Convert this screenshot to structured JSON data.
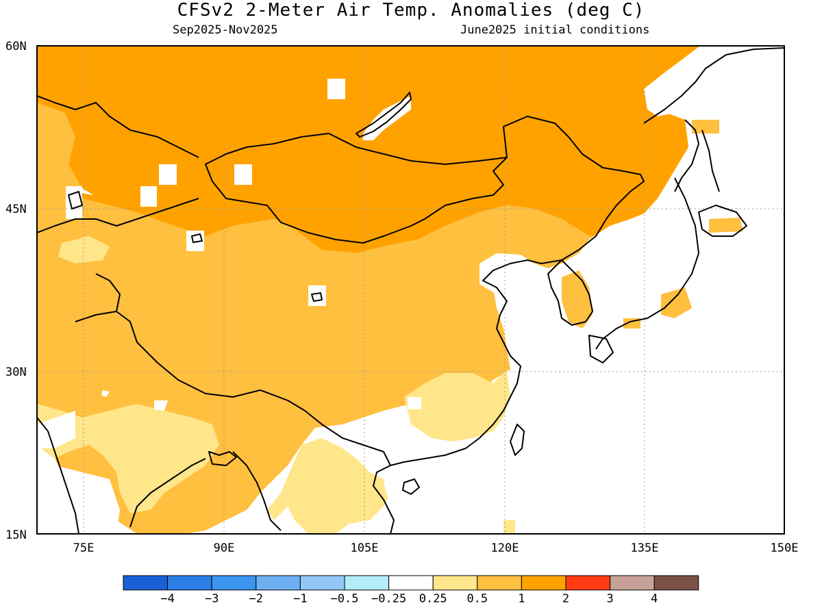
{
  "title": "CFSv2 2-Meter Air Temp. Anomalies (deg C)",
  "subtitle_left": "Sep2025-Nov2025",
  "subtitle_right": "June2025 initial conditions",
  "map": {
    "lon_range": [
      70,
      150
    ],
    "lat_range": [
      15,
      60
    ],
    "lat_labels": [
      "60N",
      "45N",
      "30N",
      "15N"
    ],
    "lon_labels": [
      "75E",
      "90E",
      "105E",
      "120E",
      "135E",
      "150E"
    ],
    "gridlines": "dotted"
  },
  "colorbar": {
    "colors": [
      "#1a5fd6",
      "#2c7fe6",
      "#3a96ee",
      "#6cb0f2",
      "#93c8f6",
      "#b4ecf8",
      "#ffffff",
      "#ffe68a",
      "#ffbf3f",
      "#ffa200",
      "#ff3c14",
      "#c8a298",
      "#7a5246"
    ],
    "labels": [
      "-4",
      "-3",
      "-2",
      "-1",
      "-0.5",
      "-0.25",
      "0.25",
      "0.5",
      "1",
      "2",
      "3",
      "4"
    ]
  },
  "anomaly_colors": {
    "0.25-0.5": "#ffe68a",
    "0.5-1": "#ffbf3f",
    "1-2": "#ffa200"
  }
}
